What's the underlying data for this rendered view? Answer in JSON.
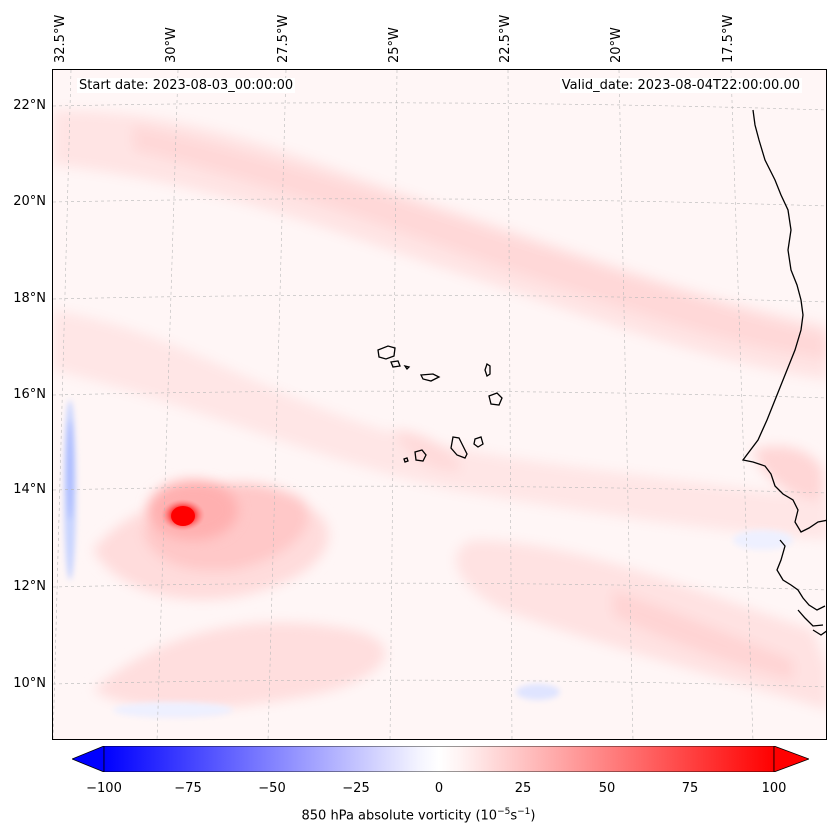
{
  "map": {
    "start_date": "Start date: 2023-08-03_00:00:00",
    "valid_date": "Valid_date: 2023-08-04T22:00:00.00",
    "longitude_labels": [
      "32.5°W",
      "30°W",
      "27.5°W",
      "25°W",
      "22.5°W",
      "20°W",
      "17.5°W"
    ],
    "latitude_labels": [
      "22°N",
      "20°N",
      "18°N",
      "16°N",
      "14°N",
      "12°N",
      "10°N"
    ],
    "field": "850 hPa absolute vorticity",
    "max_feature": {
      "lon_deg_w": 30.4,
      "lat_deg_n": 13.5,
      "approx_value": 100
    }
  },
  "colorbar": {
    "tick_labels": [
      "−100",
      "−75",
      "−50",
      "−25",
      "0",
      "25",
      "50",
      "75",
      "100"
    ],
    "label_text": "850 hPa absolute vorticity (10",
    "label_exp1": "−5",
    "label_mid": "s",
    "label_exp2": "−1",
    "label_close": ")",
    "min_color": "#0000ff",
    "mid_color": "#ffffff",
    "max_color": "#ff0000",
    "range": [
      -100,
      100
    ]
  }
}
